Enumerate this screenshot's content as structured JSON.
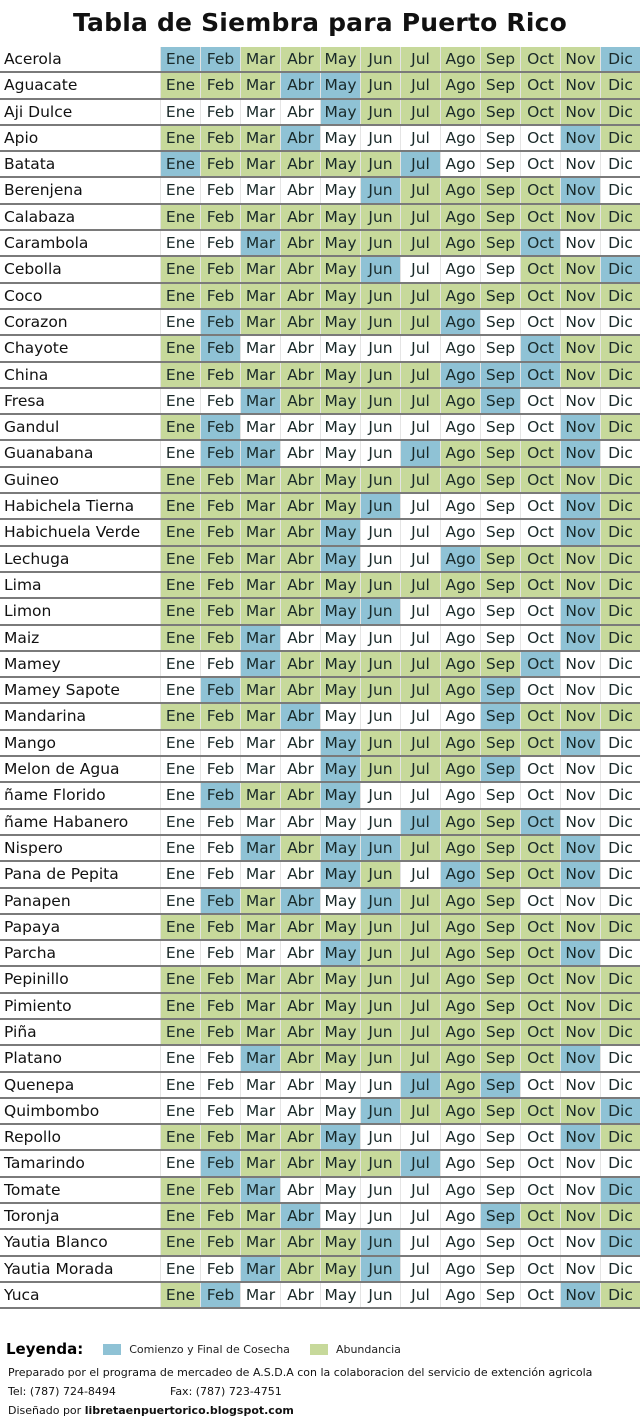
{
  "title": "Tabla de Siembra para Puerto Rico",
  "months": [
    "Ene",
    "Feb",
    "Mar",
    "Abr",
    "May",
    "Jun",
    "Jul",
    "Ago",
    "Sep",
    "Oct",
    "Nov",
    "Dic"
  ],
  "colors": {
    "B": "#8fc2d5",
    "G": "#c7d99b",
    "W": "#ffffff"
  },
  "status_key": {
    "B": "Comienzo y Final de Cosecha",
    "G": "Abundancia",
    "W": "none"
  },
  "crops": [
    {
      "name": "Acerola",
      "months": "BBGGGGGGGGGB"
    },
    {
      "name": "Aguacate",
      "months": "GGGBBGGGGGGG"
    },
    {
      "name": "Aji Dulce",
      "months": "WWWWBGGGGGGG"
    },
    {
      "name": "Apio",
      "months": "GGGBWWWWWWBG"
    },
    {
      "name": "Batata",
      "months": "BGGGGGBWWWWW"
    },
    {
      "name": "Berenjena",
      "months": "WWWWWBGGGGBW"
    },
    {
      "name": "Calabaza",
      "months": "GGGGGGGGGGGG"
    },
    {
      "name": "Carambola",
      "months": "WWBGGGGGGBWW"
    },
    {
      "name": "Cebolla",
      "months": "GGGGGBWWWGGB"
    },
    {
      "name": "Coco",
      "months": "GGGGGGGGGGGG"
    },
    {
      "name": "Corazon",
      "months": "WBGGGGGBWWWW"
    },
    {
      "name": "Chayote",
      "months": "GBWWWWWWWBGG"
    },
    {
      "name": "China",
      "months": "GGGGGGGBBBGG"
    },
    {
      "name": "Fresa",
      "months": "WWBGGGGGBWWW"
    },
    {
      "name": "Gandul",
      "months": "GBWWWWWWWWBG"
    },
    {
      "name": "Guanabana",
      "months": "WBBWWWBGGGBW"
    },
    {
      "name": "Guineo",
      "months": "GGGGGGGGGGGG"
    },
    {
      "name": "Habichela Tierna",
      "months": "GGGGGBWWWWBG"
    },
    {
      "name": "Habichuela Verde",
      "months": "GGGGBWWWWWBG"
    },
    {
      "name": "Lechuga",
      "months": "GGGGBWWBGGGG"
    },
    {
      "name": "Lima",
      "months": "GGGGGGGGGGGG"
    },
    {
      "name": "Limon",
      "months": "GGGGBBWWWWBG"
    },
    {
      "name": "Maiz",
      "months": "GGBWWWWWWWBG"
    },
    {
      "name": "Mamey",
      "months": "WWBGGGGGGBWW"
    },
    {
      "name": "Mamey Sapote",
      "months": "WBGGGGGGBWWW"
    },
    {
      "name": "Mandarina",
      "months": "GGGBWWWWBGGG"
    },
    {
      "name": "Mango",
      "months": "WWWWBGGGGGBW"
    },
    {
      "name": "Melon de Agua",
      "months": "WWWWBGGGBWWW"
    },
    {
      "name": "ñame Florido",
      "months": "WBGGBWWWWWWW"
    },
    {
      "name": "ñame Habanero",
      "months": "WWWWWWBGGBWW"
    },
    {
      "name": "Nispero",
      "months": "WWBGBBGGGGBW"
    },
    {
      "name": "Pana de Pepita",
      "months": "WWWWBGWBGGBW"
    },
    {
      "name": "Panapen",
      "months": "WBGBWBGGGWWW"
    },
    {
      "name": "Papaya",
      "months": "GGGGGGGGGGGG"
    },
    {
      "name": "Parcha",
      "months": "WWWWBGGGGGBW"
    },
    {
      "name": "Pepinillo",
      "months": "GGGGGGGGGGGG"
    },
    {
      "name": "Pimiento",
      "months": "GGGGGGGGGGGG"
    },
    {
      "name": "Piña",
      "months": "GGGGGGGGGGGG"
    },
    {
      "name": "Platano",
      "months": "WWBGGGGGGGBW"
    },
    {
      "name": "Quenepa",
      "months": "WWWWWWBGBWWW"
    },
    {
      "name": "Quimbombo",
      "months": "WWWWWBGGGGGB"
    },
    {
      "name": "Repollo",
      "months": "GGGGBWWWWWBG"
    },
    {
      "name": "Tamarindo",
      "months": "WBGGGGBWWWWW"
    },
    {
      "name": "Tomate",
      "months": "GGBWWWWWWWWB"
    },
    {
      "name": "Toronja",
      "months": "GGGBWWWWBGGG"
    },
    {
      "name": "Yautia Blanco",
      "months": "GGGGGBWWWWWB"
    },
    {
      "name": "Yautia Morada",
      "months": "WWBGGBWWWWWW"
    },
    {
      "name": "Yuca",
      "months": "GBWWWWWWWWBG"
    }
  ],
  "legend": {
    "label": "Leyenda:",
    "blue": "Comienzo y Final de Cosecha",
    "green": "Abundancia"
  },
  "footer": {
    "prepared": "Preparado por el programa de mercadeo de A.S.D.A con la colaboracion del servicio de extención agricola",
    "tel": "Tel: (787) 724-8494",
    "fax": "Fax: (787) 723-4751",
    "designed_prefix": "Diseñado por",
    "designed_site": "libretaenpuertorico.blogspot.com"
  }
}
